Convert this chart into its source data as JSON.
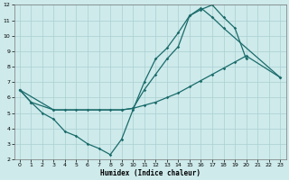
{
  "xlabel": "Humidex (Indice chaleur)",
  "bg_color": "#ceeaeb",
  "grid_color": "#aacfd0",
  "line_color": "#1a6b6b",
  "line1_x": [
    0,
    1,
    2,
    3,
    4,
    5,
    6,
    7,
    8,
    9,
    10,
    11,
    12,
    13,
    14,
    15,
    16,
    17,
    18,
    19,
    20
  ],
  "line1_y": [
    6.5,
    5.7,
    5.0,
    4.6,
    3.8,
    3.5,
    3.0,
    2.7,
    2.3,
    3.3,
    5.2,
    7.0,
    8.5,
    9.2,
    10.2,
    11.3,
    11.7,
    12.0,
    11.2,
    10.5,
    8.5
  ],
  "line2_x": [
    0,
    1,
    3,
    9,
    10,
    11,
    12,
    13,
    14,
    15,
    16,
    17,
    18,
    23
  ],
  "line2_y": [
    6.5,
    5.7,
    5.2,
    5.2,
    5.3,
    6.5,
    7.5,
    8.5,
    9.3,
    11.3,
    11.8,
    11.2,
    10.5,
    7.3
  ],
  "line3_x": [
    0,
    3,
    4,
    5,
    6,
    7,
    8,
    9,
    10,
    11,
    12,
    13,
    14,
    15,
    16,
    17,
    18,
    19,
    20,
    23
  ],
  "line3_y": [
    6.5,
    5.2,
    5.2,
    5.2,
    5.2,
    5.2,
    5.2,
    5.2,
    5.3,
    5.5,
    5.7,
    6.0,
    6.3,
    6.7,
    7.1,
    7.5,
    7.9,
    8.3,
    8.7,
    7.3
  ],
  "xlim": [
    -0.5,
    23.5
  ],
  "ylim": [
    2,
    12
  ],
  "xticks": [
    0,
    1,
    2,
    3,
    4,
    5,
    6,
    7,
    8,
    9,
    10,
    11,
    12,
    13,
    14,
    15,
    16,
    17,
    18,
    19,
    20,
    21,
    22,
    23
  ],
  "yticks": [
    2,
    3,
    4,
    5,
    6,
    7,
    8,
    9,
    10,
    11,
    12
  ]
}
